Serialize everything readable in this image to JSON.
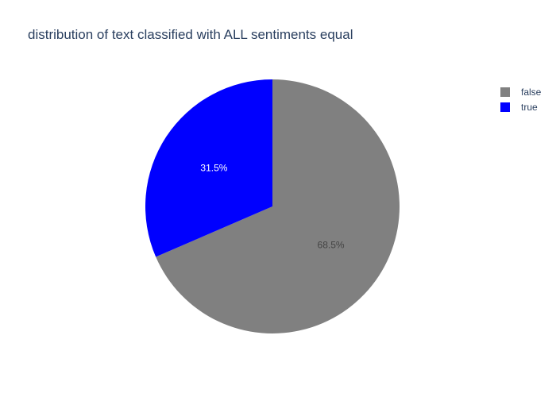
{
  "chart_data": {
    "type": "pie",
    "title": "distribution of text classified with ALL sentiments equal",
    "slices": [
      {
        "label": "false",
        "value": 68.5,
        "percent_label": "68.5%",
        "color": "#808080",
        "text_color": "#444444"
      },
      {
        "label": "true",
        "value": 31.5,
        "percent_label": "31.5%",
        "color": "#0000ff",
        "text_color": "#ffffff"
      }
    ],
    "legend": {
      "position": "top-right",
      "entries": [
        {
          "label": "false",
          "color": "#808080"
        },
        {
          "label": "true",
          "color": "#0000ff"
        }
      ]
    },
    "start_angle_deg": 90,
    "direction": "counterclockwise"
  }
}
